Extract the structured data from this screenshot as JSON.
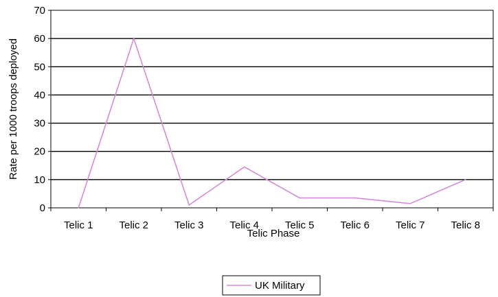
{
  "chart_data": {
    "type": "line",
    "title": "",
    "xlabel": "Telic Phase",
    "ylabel": "Rate per 1000 troops deployed",
    "categories": [
      "Telic 1",
      "Telic 2",
      "Telic 3",
      "Telic 4",
      "Telic 5",
      "Telic 6",
      "Telic 7",
      "Telic 8"
    ],
    "series": [
      {
        "name": "UK Military",
        "values": [
          0,
          60,
          1,
          14.5,
          3.5,
          3.5,
          1.5,
          10
        ],
        "color": "#d58ad8"
      }
    ],
    "ylim": [
      0,
      70
    ],
    "yticks": [
      0,
      10,
      20,
      30,
      40,
      50,
      60,
      70
    ],
    "grid": true,
    "legend_position": "bottom-center"
  }
}
